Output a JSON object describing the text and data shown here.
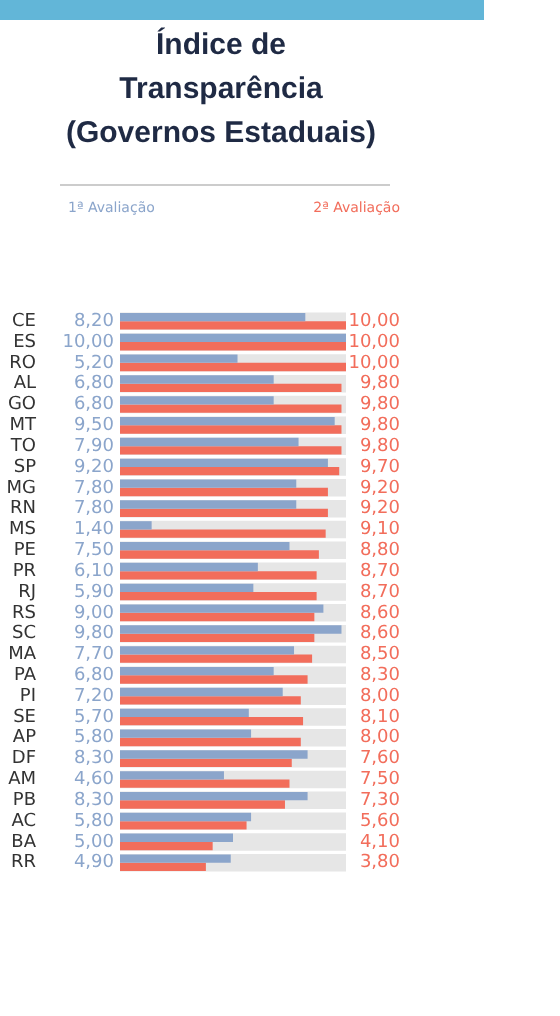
{
  "chart_data": {
    "type": "bar",
    "orientation": "horizontal",
    "title": "Índice de Transparência (Governos Estaduais)",
    "categories": [
      "CE",
      "ES",
      "RO",
      "AL",
      "GO",
      "MT",
      "TO",
      "SP",
      "MG",
      "RN",
      "MS",
      "PE",
      "PR",
      "RJ",
      "RS",
      "SC",
      "MA",
      "PA",
      "PI",
      "SE",
      "AP",
      "DF",
      "AM",
      "PB",
      "AC",
      "BA",
      "RR"
    ],
    "series": [
      {
        "name": "1ª Avaliação",
        "color": "#8ba5cb",
        "values": [
          8.2,
          10,
          5.2,
          6.8,
          6.8,
          9.5,
          7.9,
          9.2,
          7.8,
          7.8,
          1.4,
          7.5,
          6.1,
          5.9,
          9.0,
          9.8,
          7.7,
          6.8,
          7.2,
          5.7,
          5.8,
          8.3,
          4.6,
          8.3,
          5.8,
          5.0,
          4.9
        ],
        "value_labels": [
          "8,20",
          "10,00",
          "5,20",
          "6,80",
          "6,80",
          "9,50",
          "7,90",
          "9,20",
          "7,80",
          "7,80",
          "1,40",
          "7,50",
          "6,10",
          "5,90",
          "9,00",
          "9,80",
          "7,70",
          "6,80",
          "7,20",
          "5,70",
          "5,80",
          "8,30",
          "4,60",
          "8,30",
          "5,80",
          "5,00",
          "4,90"
        ]
      },
      {
        "name": "2ª Avaliação",
        "color": "#f26d5b",
        "values": [
          10,
          10,
          10,
          9.8,
          9.8,
          9.8,
          9.8,
          9.7,
          9.2,
          9.2,
          9.1,
          8.8,
          8.7,
          8.7,
          8.6,
          8.6,
          8.5,
          8.3,
          8.0,
          8.1,
          8.0,
          7.6,
          7.5,
          7.3,
          5.6,
          4.1,
          3.8
        ],
        "value_labels": [
          "10,00",
          "10,00",
          "10,00",
          "9,80",
          "9,80",
          "9,80",
          "9,80",
          "9,70",
          "9,20",
          "9,20",
          "9,10",
          "8,80",
          "8,70",
          "8,70",
          "8,60",
          "8,60",
          "8,50",
          "8,30",
          "8,00",
          "8,10",
          "8,00",
          "7,60",
          "7,50",
          "7,30",
          "5,60",
          "4,10",
          "3,80"
        ]
      }
    ],
    "xlim": [
      0,
      10
    ],
    "tick_labels": "y",
    "legend": "top"
  }
}
